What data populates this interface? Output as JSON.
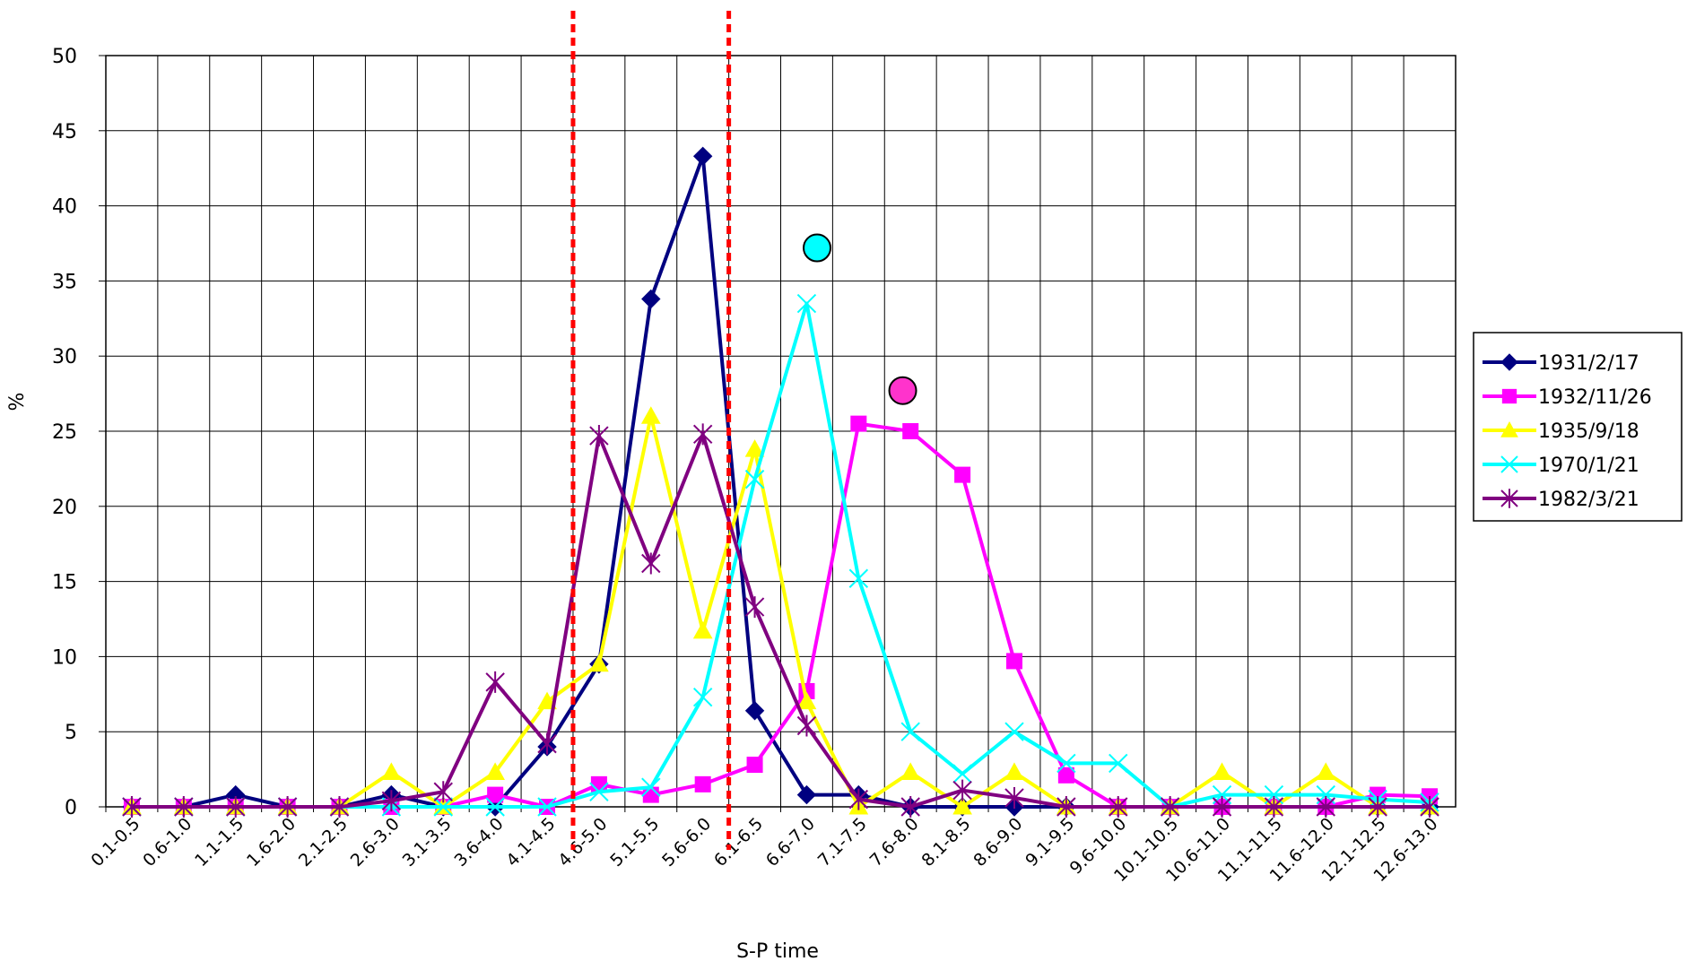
{
  "chart_data": {
    "type": "line",
    "title": "",
    "xlabel": "S-P time",
    "ylabel": "%",
    "ylim": [
      0,
      50
    ],
    "yticks": [
      "0",
      "5",
      "10",
      "15",
      "20",
      "25",
      "30",
      "35",
      "40",
      "45",
      "50"
    ],
    "grid": true,
    "legend_position": "right",
    "categories": [
      "0.1-0.5",
      "0.6-1.0",
      "1.1-1.5",
      "1.6-2.0",
      "2.1-2.5",
      "2.6-3.0",
      "3.1-3.5",
      "3.6-4.0",
      "4.1-4.5",
      "4.6-5.0",
      "5.1-5.5",
      "5.6-6.0",
      "6.1-6.5",
      "6.6-7.0",
      "7.1-7.5",
      "7.6-8.0",
      "8.1-8.5",
      "8.6-9.0",
      "9.1-9.5",
      "9.6-10.0",
      "10.1-10.5",
      "10.6-11.0",
      "11.1-11.5",
      "11.6-12.0",
      "12.1-12.5",
      "12.6-13.0"
    ],
    "series": [
      {
        "name": "1931/2/17",
        "color": "#000080",
        "marker": "diamond",
        "values": [
          0,
          0,
          0.8,
          0,
          0,
          0.8,
          0,
          0,
          4.0,
          9.5,
          33.8,
          43.3,
          6.4,
          0.8,
          0.8,
          0,
          0,
          0,
          0,
          0,
          0,
          0,
          0,
          0,
          0,
          0
        ]
      },
      {
        "name": "1932/11/26",
        "color": "#FF00FF",
        "marker": "square",
        "values": [
          0,
          0,
          0,
          0,
          0,
          0,
          0,
          0.8,
          0,
          1.5,
          0.8,
          1.5,
          2.8,
          7.7,
          25.5,
          25.0,
          22.1,
          9.7,
          2.1,
          0,
          0,
          0,
          0,
          0,
          0.8,
          0.7
        ]
      },
      {
        "name": "1935/9/18",
        "color": "#FFFF00",
        "marker": "triangle",
        "values": [
          0,
          0,
          0,
          0,
          0,
          2.3,
          0,
          2.3,
          7.0,
          9.5,
          26.0,
          11.7,
          23.8,
          7.0,
          0,
          2.3,
          0,
          2.3,
          0,
          0,
          0,
          2.3,
          0,
          2.3,
          0,
          0
        ]
      },
      {
        "name": "1970/1/21",
        "color": "#00FFFF",
        "marker": "x",
        "values": [
          0,
          0,
          0,
          0,
          0,
          0,
          0,
          0,
          0,
          1.0,
          1.3,
          7.3,
          21.8,
          33.5,
          15.2,
          5.0,
          2.2,
          5.0,
          2.9,
          2.9,
          0,
          0.8,
          0.8,
          0.8,
          0.5,
          0.3
        ]
      },
      {
        "name": "1982/3/21",
        "color": "#800080",
        "marker": "star",
        "values": [
          0,
          0,
          0,
          0,
          0,
          0.4,
          1.0,
          8.3,
          4.2,
          24.7,
          16.2,
          24.8,
          13.3,
          5.4,
          0.5,
          0,
          1.1,
          0.6,
          0,
          0,
          0,
          0,
          0,
          0,
          0,
          0
        ]
      }
    ],
    "annotations": [
      {
        "type": "vertical-dashed-line",
        "color": "#FF0000",
        "x_category_index": 8.5
      },
      {
        "type": "vertical-dashed-line",
        "color": "#FF0000",
        "x_category_index": 11.5
      },
      {
        "type": "circle-marker",
        "color": "#00FFFF",
        "x_category_index": 13.2,
        "y": 37.2
      },
      {
        "type": "circle-marker",
        "color": "#FF33CC",
        "x_category_index": 14.85,
        "y": 27.7
      }
    ]
  }
}
